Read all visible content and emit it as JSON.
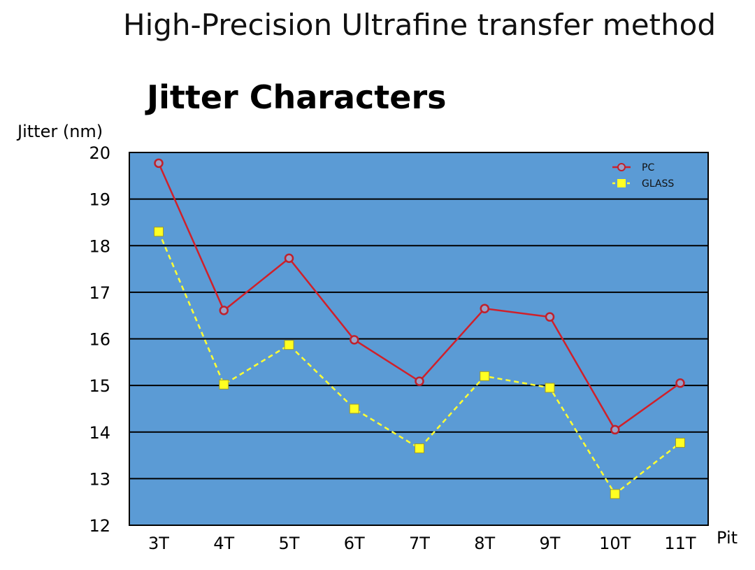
{
  "header": {
    "title": "High-Precision Ultrafine transfer method"
  },
  "chart_data": {
    "type": "line",
    "title": "Jitter Characters",
    "ylabel": "Jitter (nm)",
    "xlabel": "Pit",
    "ylim": [
      12,
      20
    ],
    "yticks": [
      12,
      13,
      14,
      15,
      16,
      17,
      18,
      19,
      20
    ],
    "grid": true,
    "legend": "top-right",
    "categories": [
      "3T",
      "4T",
      "5T",
      "6T",
      "7T",
      "8T",
      "9T",
      "10T",
      "11T"
    ],
    "series": [
      {
        "name": "PC",
        "color": "#d0202a",
        "marker": "circle",
        "dash": false,
        "values": [
          19.77,
          16.61,
          17.73,
          15.98,
          15.09,
          16.65,
          16.47,
          14.05,
          15.05
        ]
      },
      {
        "name": "GLASS",
        "color": "#ffff33",
        "marker": "square",
        "dash": true,
        "values": [
          18.3,
          15.02,
          15.87,
          14.5,
          13.65,
          15.2,
          14.95,
          12.67,
          13.77
        ]
      }
    ],
    "colors": {
      "plot_bg": "#5b9bd5"
    }
  }
}
